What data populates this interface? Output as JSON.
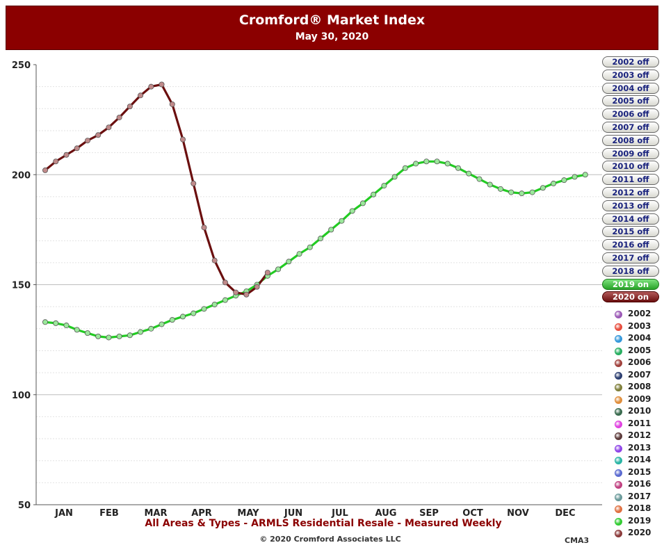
{
  "header": {
    "title": "Cromford® Market Index",
    "subtitle": "May 30, 2020"
  },
  "caption": "All Areas & Types - ARMLS Residential Resale - Measured Weekly",
  "copyright": "© 2020 Cromford Associates LLC",
  "code": "CMA3",
  "colors": {
    "header_bg": "#8b0000",
    "series_2019": "#22cc22",
    "series_2020": "#6b0f0f"
  },
  "legend_buttons": [
    {
      "label": "2002 off",
      "state": "off"
    },
    {
      "label": "2003 off",
      "state": "off"
    },
    {
      "label": "2004 off",
      "state": "off"
    },
    {
      "label": "2005 off",
      "state": "off"
    },
    {
      "label": "2006 off",
      "state": "off"
    },
    {
      "label": "2007 off",
      "state": "off"
    },
    {
      "label": "2008 off",
      "state": "off"
    },
    {
      "label": "2009 off",
      "state": "off"
    },
    {
      "label": "2010 off",
      "state": "off"
    },
    {
      "label": "2011 off",
      "state": "off"
    },
    {
      "label": "2012 off",
      "state": "off"
    },
    {
      "label": "2013 off",
      "state": "off"
    },
    {
      "label": "2014 off",
      "state": "off"
    },
    {
      "label": "2015 off",
      "state": "off"
    },
    {
      "label": "2016 off",
      "state": "off"
    },
    {
      "label": "2017 off",
      "state": "off"
    },
    {
      "label": "2018 off",
      "state": "off"
    },
    {
      "label": "2019 on",
      "state": "on-green"
    },
    {
      "label": "2020 on",
      "state": "on-red"
    }
  ],
  "color_key": [
    {
      "label": "2002",
      "color": "#9b59b6"
    },
    {
      "label": "2003",
      "color": "#e74c3c"
    },
    {
      "label": "2004",
      "color": "#3498db"
    },
    {
      "label": "2005",
      "color": "#27ae60"
    },
    {
      "label": "2006",
      "color": "#a0413c"
    },
    {
      "label": "2007",
      "color": "#2c3e70"
    },
    {
      "label": "2008",
      "color": "#7f7f3a"
    },
    {
      "label": "2009",
      "color": "#e08e3c"
    },
    {
      "label": "2010",
      "color": "#3a6b4f"
    },
    {
      "label": "2011",
      "color": "#e040e0"
    },
    {
      "label": "2012",
      "color": "#5c3a3a"
    },
    {
      "label": "2013",
      "color": "#8e44e8"
    },
    {
      "label": "2014",
      "color": "#2ab5a5"
    },
    {
      "label": "2015",
      "color": "#5a6ad0"
    },
    {
      "label": "2016",
      "color": "#c04080"
    },
    {
      "label": "2017",
      "color": "#6a9a9a"
    },
    {
      "label": "2018",
      "color": "#e07040"
    },
    {
      "label": "2019",
      "color": "#33cc33"
    },
    {
      "label": "2020",
      "color": "#8b3a3a"
    }
  ],
  "chart_data": {
    "type": "line",
    "title": "Cromford® Market Index",
    "subtitle": "May 30, 2020",
    "ylim": [
      50,
      250
    ],
    "yticks": [
      50,
      100,
      150,
      200,
      250
    ],
    "xlim": [
      0,
      52
    ],
    "month_labels": [
      "JAN",
      "FEB",
      "MAR",
      "APR",
      "MAY",
      "JUN",
      "JUL",
      "AUG",
      "SEP",
      "OCT",
      "NOV",
      "DEC"
    ],
    "grid": true,
    "series": [
      {
        "name": "2019",
        "color": "#22cc22",
        "values": [
          133,
          132.5,
          131.5,
          129.5,
          128,
          126.5,
          126,
          126.5,
          127,
          128.5,
          130,
          132,
          134,
          135.5,
          137,
          139,
          141,
          143,
          145,
          147,
          150,
          154,
          157,
          160.5,
          164,
          167,
          171,
          175,
          179,
          183.5,
          187,
          191,
          195,
          199,
          203,
          205,
          206,
          206,
          205,
          203,
          200.5,
          198,
          195.5,
          193.5,
          192,
          191.5,
          192,
          194,
          196,
          197.5,
          199,
          200
        ]
      },
      {
        "name": "2020",
        "color": "#6b0f0f",
        "values": [
          202,
          206,
          209,
          212,
          215.5,
          218,
          221.5,
          226,
          231,
          236,
          240,
          241,
          232,
          216,
          196,
          176,
          161,
          151,
          146.5,
          145.5,
          149,
          155.5
        ]
      }
    ]
  }
}
